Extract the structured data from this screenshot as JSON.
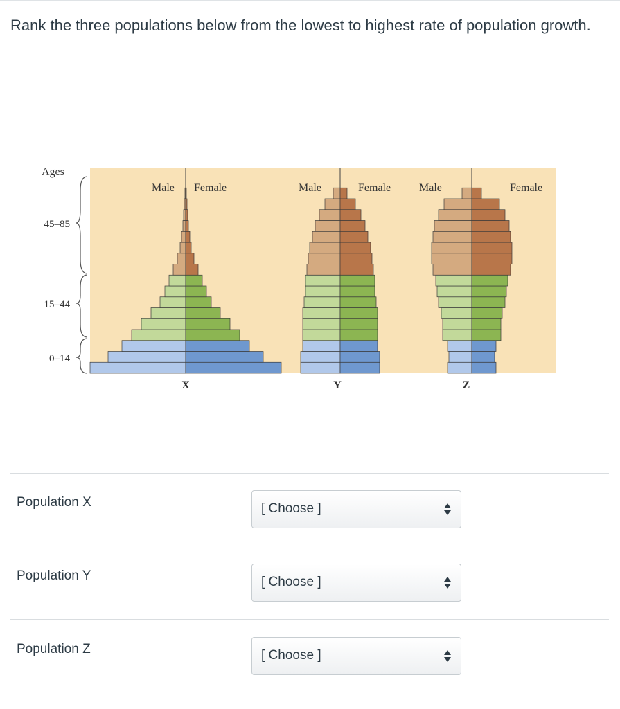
{
  "question": {
    "text": "Rank the three populations below from the lowest to highest rate of population growth."
  },
  "figure": {
    "axis_title": "Ages",
    "age_groups": [
      "45–85",
      "15–44",
      "0–14"
    ],
    "pyramids": [
      {
        "letter": "X",
        "male_label": "Male",
        "female_label": "Female"
      },
      {
        "letter": "Y",
        "male_label": "Male",
        "female_label": "Female"
      },
      {
        "letter": "Z",
        "male_label": "Male",
        "female_label": "Female"
      }
    ],
    "colors": {
      "background": "#f9e2b7",
      "male_old": "#d4aa80",
      "female_old": "#b8764a",
      "male_mid": "#c2d99a",
      "female_mid": "#8cb552",
      "male_young": "#b1c8ea",
      "female_young": "#6f98cf",
      "outline": "#3a3a3a"
    }
  },
  "rows": [
    {
      "label": "Population X",
      "select_value": "[ Choose ]"
    },
    {
      "label": "Population Y",
      "select_value": "[ Choose ]"
    },
    {
      "label": "Population Z",
      "select_value": "[ Choose ]"
    }
  ]
}
